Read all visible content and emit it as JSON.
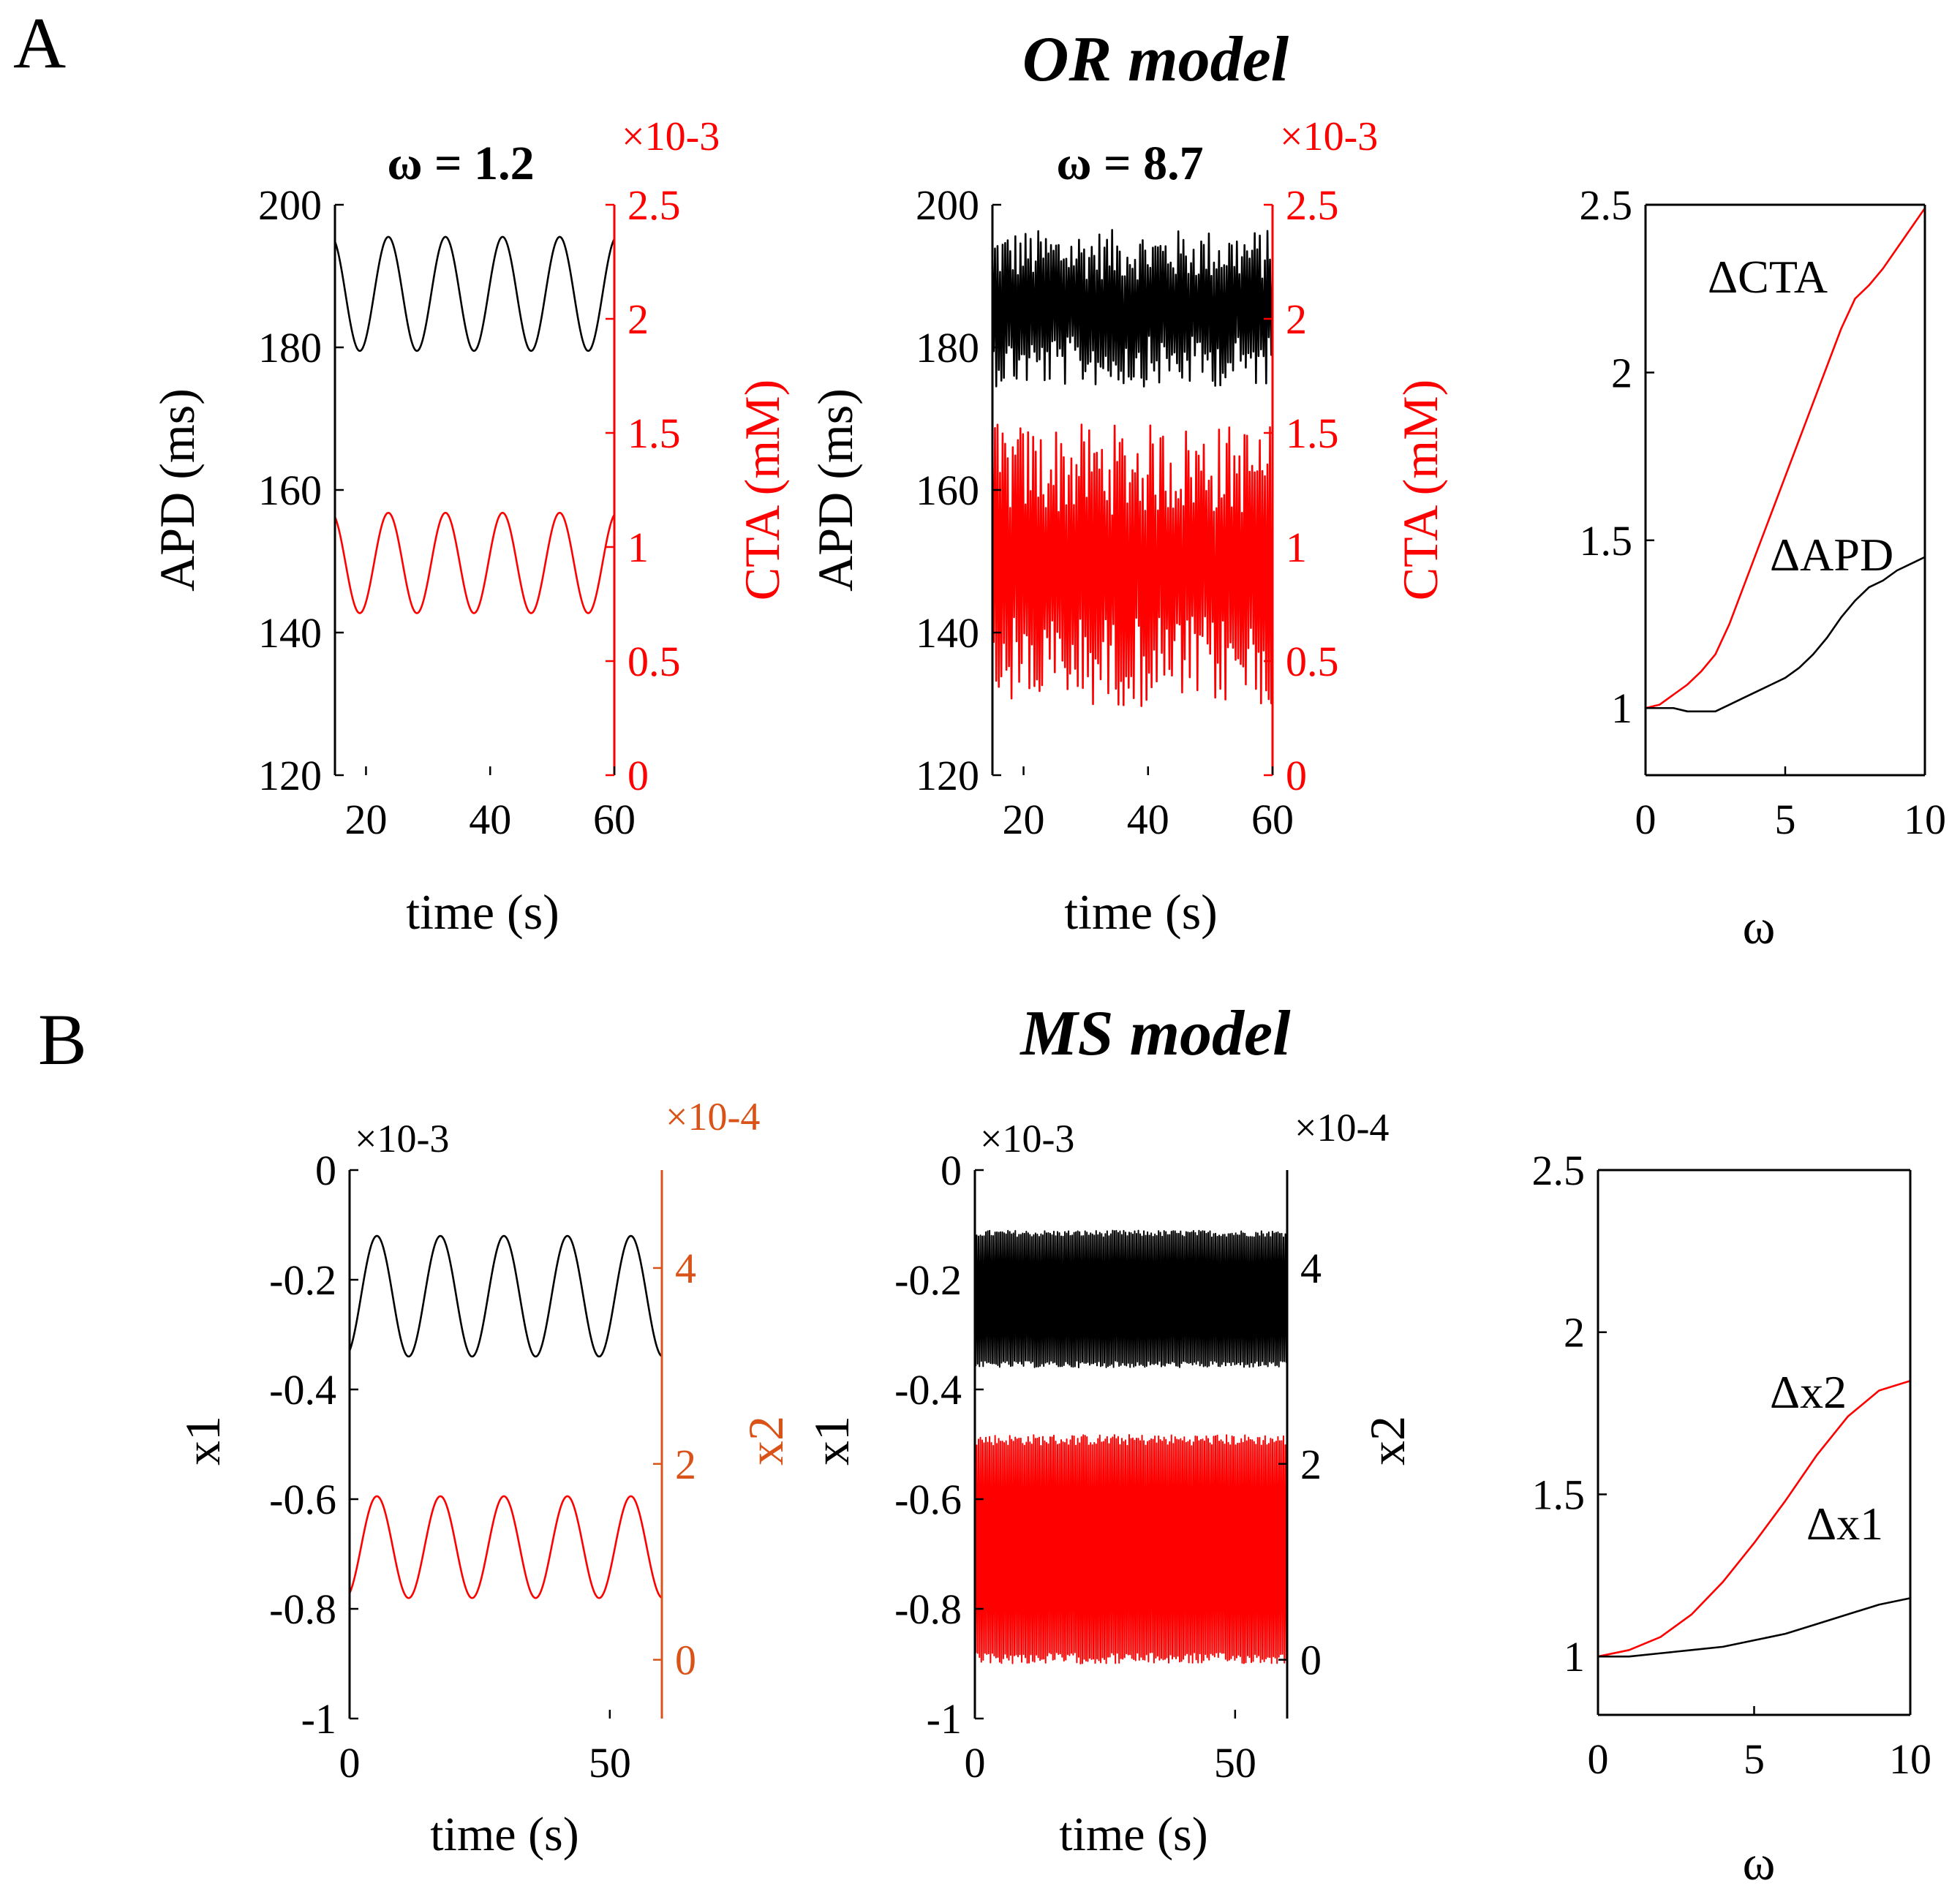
{
  "figure": {
    "panel_a_label": "A",
    "panel_b_label": "B",
    "row_a_title": "OR model",
    "row_b_title": "MS model"
  },
  "colors": {
    "black": "#000000",
    "red": "#ff0000",
    "orange": "#d95319"
  },
  "chart_data": [
    {
      "id": "a1",
      "type": "line",
      "panel": "A",
      "title": "ω = 1.2",
      "xlabel": "time (s)",
      "ylabel": "APD (ms)",
      "y2label": "CTA (mM)",
      "y2_exponent": "×10-3",
      "xlim": [
        15,
        60
      ],
      "ylim": [
        120,
        200
      ],
      "y2lim": [
        0,
        2.5
      ],
      "xticks": [
        20,
        40,
        60
      ],
      "xtick_labels": [
        "20",
        "40",
        "60"
      ],
      "yticks": [
        120,
        140,
        160,
        180,
        200
      ],
      "ytick_labels": [
        "120",
        "140",
        "160",
        "180",
        "200"
      ],
      "y2ticks": [
        0,
        0.5,
        1,
        1.5,
        2,
        2.5
      ],
      "y2tick_labels": [
        "0",
        "0.5",
        "1",
        "1.5",
        "2",
        "2.5"
      ],
      "grid": false,
      "y2_color": "red",
      "series": [
        {
          "name": "APD",
          "axis": "left",
          "color": "black",
          "shape": "sine",
          "mean": 187.5,
          "amplitude": 8,
          "period": 9.2,
          "phase": 2.9,
          "x_start": 15,
          "x_end": 60
        },
        {
          "name": "CTA",
          "axis": "right",
          "color": "red",
          "shape": "sine",
          "mean": 0.93,
          "amplitude": 0.22,
          "period": 9.2,
          "phase": 2.9,
          "x_start": 15,
          "x_end": 60
        }
      ]
    },
    {
      "id": "a2",
      "type": "line",
      "panel": "A",
      "title": "ω = 8.7",
      "xlabel": "time (s)",
      "ylabel": "APD (ms)",
      "y2label": "CTA (mM)",
      "y2_exponent": "×10-3",
      "xlim": [
        15,
        60
      ],
      "ylim": [
        120,
        200
      ],
      "y2lim": [
        0,
        2.5
      ],
      "xticks": [
        20,
        40,
        60
      ],
      "xtick_labels": [
        "20",
        "40",
        "60"
      ],
      "yticks": [
        120,
        140,
        160,
        180,
        200
      ],
      "ytick_labels": [
        "120",
        "140",
        "160",
        "180",
        "200"
      ],
      "y2ticks": [
        0,
        0.5,
        1,
        1.5,
        2,
        2.5
      ],
      "y2tick_labels": [
        "0",
        "0.5",
        "1",
        "1.5",
        "2",
        "2.5"
      ],
      "grid": false,
      "y2_color": "red",
      "series": [
        {
          "name": "APD",
          "axis": "left",
          "color": "black",
          "shape": "noise",
          "mean": 185.5,
          "amplitude": 11,
          "x_start": 15,
          "x_end": 60
        },
        {
          "name": "CTA",
          "axis": "right",
          "color": "red",
          "shape": "noise",
          "mean": 0.92,
          "amplitude": 0.62,
          "x_start": 15,
          "x_end": 60
        }
      ]
    },
    {
      "id": "a3",
      "type": "line",
      "panel": "A",
      "title": "",
      "xlabel": "ω",
      "ylabel": "",
      "xlim": [
        0,
        10
      ],
      "ylim": [
        0.8,
        2.5
      ],
      "xticks": [
        0,
        5,
        10
      ],
      "xtick_labels": [
        "0",
        "5",
        "10"
      ],
      "yticks": [
        1,
        1.5,
        2,
        2.5
      ],
      "ytick_labels": [
        "1",
        "1.5",
        "2",
        "2.5"
      ],
      "grid": false,
      "series": [
        {
          "name": "ΔCTA",
          "color": "red",
          "x": [
            0,
            0.5,
            1,
            1.5,
            2,
            2.5,
            3,
            3.5,
            4,
            4.5,
            5,
            5.5,
            6,
            6.5,
            7,
            7.5,
            8,
            8.5,
            9,
            9.5,
            10
          ],
          "y": [
            1.0,
            1.01,
            1.04,
            1.07,
            1.11,
            1.16,
            1.25,
            1.36,
            1.47,
            1.58,
            1.69,
            1.8,
            1.91,
            2.02,
            2.13,
            2.22,
            2.26,
            2.31,
            2.37,
            2.43,
            2.49
          ]
        },
        {
          "name": "ΔAPD",
          "color": "black",
          "x": [
            0,
            0.5,
            1,
            1.5,
            2,
            2.5,
            3,
            3.5,
            4,
            4.5,
            5,
            5.5,
            6,
            6.5,
            7,
            7.5,
            8,
            8.5,
            9,
            9.5,
            10
          ],
          "y": [
            1.0,
            1.0,
            1.0,
            0.99,
            0.99,
            0.99,
            1.01,
            1.03,
            1.05,
            1.07,
            1.09,
            1.12,
            1.16,
            1.21,
            1.27,
            1.32,
            1.36,
            1.38,
            1.41,
            1.43,
            1.45
          ]
        }
      ],
      "annotations": [
        "ΔCTA",
        "ΔAPD"
      ]
    },
    {
      "id": "b1",
      "type": "line",
      "panel": "B",
      "title": "",
      "xlabel": "time (s)",
      "ylabel": "x1",
      "y2label": "x2",
      "y_exponent": "×10-3",
      "y2_exponent": "×10-4",
      "xlim": [
        0,
        60
      ],
      "ylim": [
        -1,
        0
      ],
      "y2lim": [
        -0.6,
        5
      ],
      "xticks": [
        0,
        50
      ],
      "xtick_labels": [
        "0",
        "50"
      ],
      "yticks": [
        -1,
        -0.8,
        -0.6,
        -0.4,
        -0.2,
        0
      ],
      "ytick_labels": [
        "-1",
        "-0.8",
        "-0.6",
        "-0.4",
        "-0.2",
        "0"
      ],
      "y2ticks": [
        0,
        2,
        4
      ],
      "y2tick_labels": [
        "0",
        "2",
        "4"
      ],
      "grid": false,
      "y2_color": "orange",
      "series": [
        {
          "name": "x1",
          "axis": "left",
          "color": "black",
          "shape": "sine",
          "mean": -0.23,
          "amplitude": 0.11,
          "period": 12.2,
          "phase": 2.2,
          "x_start": 0,
          "x_end": 60
        },
        {
          "name": "x2",
          "axis": "right",
          "color": "red",
          "shape": "sine",
          "mean": 1.15,
          "amplitude": 0.52,
          "period": 12.2,
          "phase": 2.2,
          "x_start": 0,
          "x_end": 60
        }
      ]
    },
    {
      "id": "b2",
      "type": "line",
      "panel": "B",
      "title": "",
      "xlabel": "time (s)",
      "ylabel": "x1",
      "y2label": "x2",
      "y_exponent": "×10-3",
      "y2_exponent": "×10-4",
      "xlim": [
        0,
        60
      ],
      "ylim": [
        -1,
        0
      ],
      "y2lim": [
        -0.6,
        5
      ],
      "xticks": [
        0,
        50
      ],
      "xtick_labels": [
        "0",
        "50"
      ],
      "yticks": [
        -1,
        -0.8,
        -0.6,
        -0.4,
        -0.2,
        0
      ],
      "ytick_labels": [
        "-1",
        "-0.8",
        "-0.6",
        "-0.4",
        "-0.2",
        "0"
      ],
      "y2ticks": [
        0,
        2,
        4
      ],
      "y2tick_labels": [
        "0",
        "2",
        "4"
      ],
      "grid": false,
      "y2_color": "black",
      "series": [
        {
          "name": "x1",
          "axis": "left",
          "color": "black",
          "shape": "dense",
          "mean": -0.235,
          "amplitude": 0.125,
          "x_start": 0,
          "x_end": 60
        },
        {
          "name": "x2",
          "axis": "right",
          "color": "red",
          "shape": "dense",
          "mean": 1.13,
          "amplitude": 1.17,
          "x_start": 0,
          "x_end": 60
        }
      ]
    },
    {
      "id": "b3",
      "type": "line",
      "panel": "B",
      "title": "",
      "xlabel": "ω",
      "ylabel": "",
      "xlim": [
        0,
        10
      ],
      "ylim": [
        0.82,
        2.5
      ],
      "xticks": [
        0,
        5,
        10
      ],
      "xtick_labels": [
        "0",
        "5",
        "10"
      ],
      "yticks": [
        1,
        1.5,
        2,
        2.5
      ],
      "ytick_labels": [
        "1",
        "1.5",
        "2",
        "2.5"
      ],
      "grid": false,
      "series": [
        {
          "name": "Δx2",
          "color": "red",
          "x": [
            0,
            1,
            2,
            3,
            4,
            5,
            6,
            7,
            8,
            9,
            10
          ],
          "y": [
            1.0,
            1.02,
            1.06,
            1.13,
            1.23,
            1.35,
            1.48,
            1.62,
            1.74,
            1.82,
            1.85
          ]
        },
        {
          "name": "Δx1",
          "color": "black",
          "x": [
            0,
            1,
            2,
            3,
            4,
            5,
            6,
            7,
            8,
            9,
            10
          ],
          "y": [
            1.0,
            1.0,
            1.01,
            1.02,
            1.03,
            1.05,
            1.07,
            1.1,
            1.13,
            1.16,
            1.18
          ]
        }
      ],
      "annotations": [
        "Δx2",
        "Δx1"
      ]
    }
  ]
}
